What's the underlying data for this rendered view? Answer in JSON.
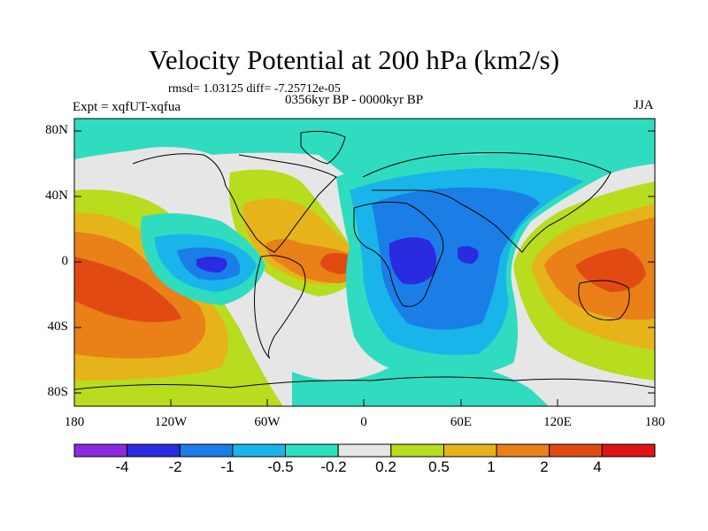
{
  "title": "Velocity Potential at 200 hPa (km2/s)",
  "stats": "rmsd= 1.03125 diff= -7.25712e-05",
  "expt": "Expt = xqfUT-xqfua",
  "period": "0356kyr BP - 0000kyr BP",
  "season": "JJA",
  "lat_labels": [
    "80N",
    "40N",
    "0",
    "40S",
    "80S"
  ],
  "lon_labels": [
    "180",
    "120W",
    "60W",
    "0",
    "60E",
    "120E",
    "180"
  ],
  "colorbar": {
    "labels": [
      "-4",
      "-2",
      "-1",
      "-0.5",
      "-0.2",
      "0.2",
      "0.5",
      "1",
      "2",
      "4"
    ],
    "colors": [
      "#8a2be2",
      "#2a2ae0",
      "#1a7ee6",
      "#19b4ea",
      "#2ee0c0",
      "#e6e6e6",
      "#b8dc1e",
      "#e6b41a",
      "#e98018",
      "#e24a14",
      "#e01414"
    ]
  },
  "colors": {
    "ocean_gray": "#e6e6e6",
    "high_lat_teal": "#30dcc0"
  }
}
